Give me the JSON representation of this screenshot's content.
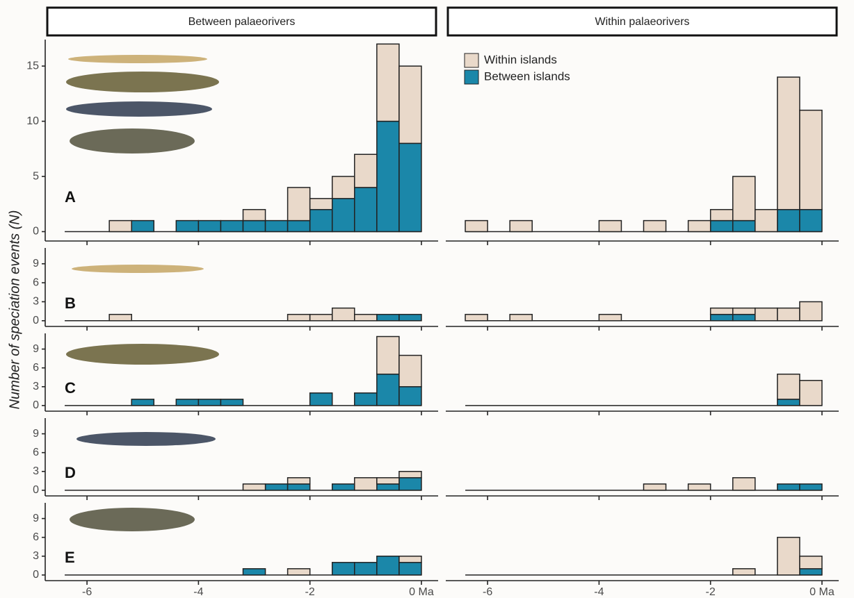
{
  "chart_data": [
    {
      "type": "histogram",
      "title": "Between palaeorivers",
      "panel_label": "A",
      "ylabel": "Number of speciation events (N)",
      "bins": [
        -6.4,
        -6,
        -5.6,
        -5.2,
        -4.8,
        -4.4,
        -4,
        -3.6,
        -3.2,
        -2.8,
        -2.4,
        -2,
        -1.6,
        -1.2,
        -0.8,
        -0.4,
        0
      ],
      "series": [
        {
          "color": "#1b87a9",
          "values": [
            0,
            0,
            0,
            1,
            0,
            1,
            1,
            1,
            1,
            1,
            1,
            2,
            3,
            4,
            10,
            8
          ]
        },
        {
          "color": "#e9d9ca",
          "values": [
            0,
            0,
            1,
            0,
            0,
            0,
            0,
            0,
            1,
            0,
            3,
            1,
            2,
            3,
            7,
            7
          ]
        }
      ],
      "xlim": [
        -6.75,
        0.3
      ],
      "xticks": [
        -6,
        -4,
        -2,
        0
      ],
      "ylim": [
        -0.85,
        17.4
      ],
      "yticks": [
        0,
        5,
        10,
        15
      ]
    },
    {
      "type": "histogram",
      "title": "Within palaeorivers",
      "legend": "top-left",
      "bins": [
        -6.4,
        -6,
        -5.6,
        -5.2,
        -4.8,
        -4.4,
        -4,
        -3.6,
        -3.2,
        -2.8,
        -2.4,
        -2,
        -1.6,
        -1.2,
        -0.8,
        -0.4,
        0
      ],
      "series": [
        {
          "name": "Between islands",
          "color": "#1b87a9",
          "values": [
            0,
            0,
            0,
            0,
            0,
            0,
            0,
            0,
            0,
            0,
            0,
            1,
            1,
            0,
            2,
            2
          ]
        },
        {
          "name": "Within islands",
          "color": "#e9d9ca",
          "values": [
            1,
            0,
            1,
            0,
            0,
            0,
            1,
            0,
            1,
            0,
            1,
            1,
            4,
            2,
            12,
            9
          ]
        }
      ],
      "xlim": [
        -6.75,
        0.3
      ],
      "xticks": [
        -6,
        -4,
        -2,
        0
      ],
      "ylim": [
        -0.85,
        17.4
      ]
    },
    {
      "type": "histogram",
      "panel_label": "B",
      "bins": [
        -6.4,
        -6,
        -5.6,
        -5.2,
        -4.8,
        -4.4,
        -4,
        -3.6,
        -3.2,
        -2.8,
        -2.4,
        -2,
        -1.6,
        -1.2,
        -0.8,
        -0.4,
        0
      ],
      "series": [
        {
          "color": "#1b87a9",
          "values": [
            0,
            0,
            0,
            0,
            0,
            0,
            0,
            0,
            0,
            0,
            0,
            0,
            0,
            0,
            1,
            1
          ]
        },
        {
          "color": "#e9d9ca",
          "values": [
            0,
            0,
            1,
            0,
            0,
            0,
            0,
            0,
            0,
            0,
            1,
            1,
            2,
            1,
            0,
            0
          ]
        }
      ],
      "xlim": [
        -6.75,
        0.3
      ],
      "xticks": [
        -6,
        -4,
        -2,
        0
      ],
      "ylim": [
        -0.9,
        11.5
      ],
      "yticks": [
        0,
        3,
        6,
        9
      ]
    },
    {
      "type": "histogram",
      "bins": [
        -6.4,
        -6,
        -5.6,
        -5.2,
        -4.8,
        -4.4,
        -4,
        -3.6,
        -3.2,
        -2.8,
        -2.4,
        -2,
        -1.6,
        -1.2,
        -0.8,
        -0.4,
        0
      ],
      "series": [
        {
          "color": "#1b87a9",
          "values": [
            0,
            0,
            0,
            0,
            0,
            0,
            0,
            0,
            0,
            0,
            0,
            1,
            1,
            0,
            0,
            0
          ]
        },
        {
          "color": "#e9d9ca",
          "values": [
            1,
            0,
            1,
            0,
            0,
            0,
            1,
            0,
            0,
            0,
            0,
            1,
            1,
            2,
            2,
            3
          ]
        }
      ],
      "xlim": [
        -6.75,
        0.3
      ],
      "xticks": [
        -6,
        -4,
        -2,
        0
      ],
      "ylim": [
        -0.9,
        11.5
      ]
    },
    {
      "type": "histogram",
      "panel_label": "C",
      "bins": [
        -6.4,
        -6,
        -5.6,
        -5.2,
        -4.8,
        -4.4,
        -4,
        -3.6,
        -3.2,
        -2.8,
        -2.4,
        -2,
        -1.6,
        -1.2,
        -0.8,
        -0.4,
        0
      ],
      "series": [
        {
          "color": "#1b87a9",
          "values": [
            0,
            0,
            0,
            1,
            0,
            1,
            1,
            1,
            0,
            0,
            0,
            2,
            0,
            2,
            5,
            3
          ]
        },
        {
          "color": "#e9d9ca",
          "values": [
            0,
            0,
            0,
            0,
            0,
            0,
            0,
            0,
            0,
            0,
            0,
            0,
            0,
            0,
            6,
            5
          ]
        }
      ],
      "xlim": [
        -6.75,
        0.3
      ],
      "xticks": [
        -6,
        -4,
        -2,
        0
      ],
      "ylim": [
        -0.9,
        11.5
      ],
      "yticks": [
        0,
        3,
        6,
        9
      ]
    },
    {
      "type": "histogram",
      "bins": [
        -6.4,
        -6,
        -5.6,
        -5.2,
        -4.8,
        -4.4,
        -4,
        -3.6,
        -3.2,
        -2.8,
        -2.4,
        -2,
        -1.6,
        -1.2,
        -0.8,
        -0.4,
        0
      ],
      "series": [
        {
          "color": "#1b87a9",
          "values": [
            0,
            0,
            0,
            0,
            0,
            0,
            0,
            0,
            0,
            0,
            0,
            0,
            0,
            0,
            1,
            0
          ]
        },
        {
          "color": "#e9d9ca",
          "values": [
            0,
            0,
            0,
            0,
            0,
            0,
            0,
            0,
            0,
            0,
            0,
            0,
            0,
            0,
            4,
            4
          ]
        }
      ],
      "xlim": [
        -6.75,
        0.3
      ],
      "xticks": [
        -6,
        -4,
        -2,
        0
      ],
      "ylim": [
        -0.9,
        11.5
      ]
    },
    {
      "type": "histogram",
      "panel_label": "D",
      "bins": [
        -6.4,
        -6,
        -5.6,
        -5.2,
        -4.8,
        -4.4,
        -4,
        -3.6,
        -3.2,
        -2.8,
        -2.4,
        -2,
        -1.6,
        -1.2,
        -0.8,
        -0.4,
        0
      ],
      "series": [
        {
          "color": "#1b87a9",
          "values": [
            0,
            0,
            0,
            0,
            0,
            0,
            0,
            0,
            0,
            1,
            1,
            0,
            1,
            0,
            1,
            2
          ]
        },
        {
          "color": "#e9d9ca",
          "values": [
            0,
            0,
            0,
            0,
            0,
            0,
            0,
            0,
            1,
            0,
            1,
            0,
            0,
            2,
            1,
            1
          ]
        }
      ],
      "xlim": [
        -6.75,
        0.3
      ],
      "xticks": [
        -6,
        -4,
        -2,
        0
      ],
      "ylim": [
        -0.9,
        11.5
      ],
      "yticks": [
        0,
        3,
        6,
        9
      ]
    },
    {
      "type": "histogram",
      "bins": [
        -6.4,
        -6,
        -5.6,
        -5.2,
        -4.8,
        -4.4,
        -4,
        -3.6,
        -3.2,
        -2.8,
        -2.4,
        -2,
        -1.6,
        -1.2,
        -0.8,
        -0.4,
        0
      ],
      "series": [
        {
          "color": "#1b87a9",
          "values": [
            0,
            0,
            0,
            0,
            0,
            0,
            0,
            0,
            0,
            0,
            0,
            0,
            0,
            0,
            1,
            1
          ]
        },
        {
          "color": "#e9d9ca",
          "values": [
            0,
            0,
            0,
            0,
            0,
            0,
            0,
            0,
            1,
            0,
            1,
            0,
            2,
            0,
            0,
            0
          ]
        }
      ],
      "xlim": [
        -6.75,
        0.3
      ],
      "xticks": [
        -6,
        -4,
        -2,
        0
      ],
      "ylim": [
        -0.9,
        11.5
      ]
    },
    {
      "type": "histogram",
      "panel_label": "E",
      "bins": [
        -6.4,
        -6,
        -5.6,
        -5.2,
        -4.8,
        -4.4,
        -4,
        -3.6,
        -3.2,
        -2.8,
        -2.4,
        -2,
        -1.6,
        -1.2,
        -0.8,
        -0.4,
        0
      ],
      "series": [
        {
          "color": "#1b87a9",
          "values": [
            0,
            0,
            0,
            0,
            0,
            0,
            0,
            0,
            1,
            0,
            0,
            0,
            2,
            2,
            3,
            2
          ]
        },
        {
          "color": "#e9d9ca",
          "values": [
            0,
            0,
            0,
            0,
            0,
            0,
            0,
            0,
            0,
            0,
            1,
            0,
            0,
            0,
            0,
            1
          ]
        }
      ],
      "xlim": [
        -6.75,
        0.3
      ],
      "xticks": [
        -6,
        -4,
        -2,
        {
          "value": 0,
          "label": "0 Ma"
        }
      ],
      "ylim": [
        -0.9,
        11.5
      ],
      "yticks": [
        0,
        3,
        6,
        9
      ]
    },
    {
      "type": "histogram",
      "bins": [
        -6.4,
        -6,
        -5.6,
        -5.2,
        -4.8,
        -4.4,
        -4,
        -3.6,
        -3.2,
        -2.8,
        -2.4,
        -2,
        -1.6,
        -1.2,
        -0.8,
        -0.4,
        0
      ],
      "series": [
        {
          "color": "#1b87a9",
          "values": [
            0,
            0,
            0,
            0,
            0,
            0,
            0,
            0,
            0,
            0,
            0,
            0,
            0,
            0,
            0,
            1
          ]
        },
        {
          "color": "#e9d9ca",
          "values": [
            0,
            0,
            0,
            0,
            0,
            0,
            0,
            0,
            0,
            0,
            0,
            0,
            1,
            0,
            6,
            2
          ]
        }
      ],
      "xlim": [
        -6.75,
        0.3
      ],
      "xticks": [
        -6,
        -4,
        -2,
        {
          "value": 0,
          "label": "0 Ma"
        }
      ],
      "ylim": [
        -0.9,
        11.5
      ]
    }
  ]
}
